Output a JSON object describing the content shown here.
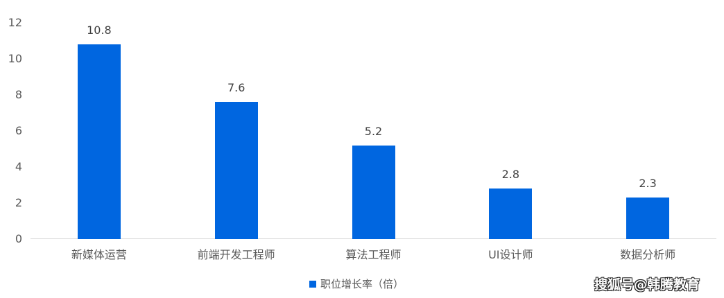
{
  "chart_data": {
    "type": "bar",
    "title": "",
    "xlabel": "",
    "ylabel": "",
    "categories": [
      "新媒体运营",
      "前端开发工程师",
      "算法工程师",
      "UI设计师",
      "数据分析师"
    ],
    "series": [
      {
        "name": "职位增长率（倍）",
        "values": [
          10.8,
          7.6,
          5.2,
          2.8,
          2.3
        ],
        "color": "#0066E0"
      }
    ],
    "ylim": [
      0,
      12
    ],
    "yticks": [
      0,
      2,
      4,
      6,
      8,
      10,
      12
    ],
    "ytick_labels": [
      "0",
      "2",
      "4",
      "6",
      "8",
      "10",
      "12"
    ],
    "data_labels": [
      "10.8",
      "7.6",
      "5.2",
      "2.8",
      "2.3"
    ],
    "grid": false,
    "legend_position": "bottom"
  },
  "legend": {
    "label": "职位增长率（倍）",
    "color": "#0066E0"
  },
  "watermark": "搜狐号@韩腾教育",
  "colors": {
    "bar": "#0066E0",
    "axis_line": "#D9D9D9",
    "text": "#595959"
  }
}
